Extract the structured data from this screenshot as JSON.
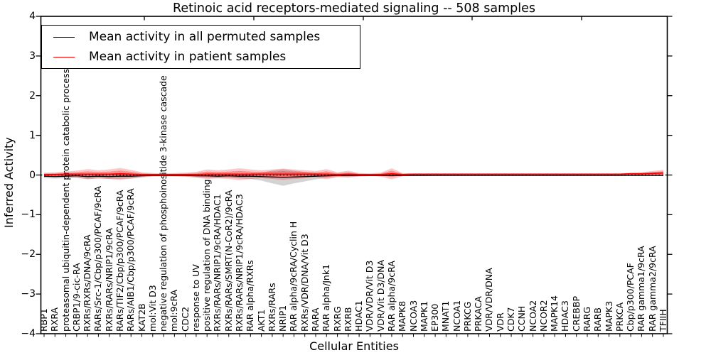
{
  "title": "Retinoic acid receptors-mediated signaling -- 508 samples",
  "axes": {
    "ylabel": "Inferred Activity",
    "xlabel": "Cellular Entities",
    "ytick_labels": [
      "4",
      "3",
      "2",
      "1",
      "0",
      "−1",
      "−2",
      "−3",
      "−4"
    ],
    "ytick_values": [
      4,
      3,
      2,
      1,
      0,
      -1,
      -2,
      -3,
      -4
    ]
  },
  "legend": {
    "items": [
      {
        "label": "Mean activity in all permuted samples",
        "color": "#000000"
      },
      {
        "label": "Mean activity in patient samples",
        "color": "#ff0000"
      }
    ]
  },
  "colors": {
    "permuted_line": "#000000",
    "patient_line": "#ff0000",
    "permuted_band": "#777777",
    "patient_band": "#ff0000",
    "axis": "#000000",
    "background": "#ffffff"
  },
  "chart_data": {
    "type": "line",
    "title": "Retinoic acid receptors-mediated signaling -- 508 samples",
    "xlabel": "Cellular Entities",
    "ylabel": "Inferred Activity",
    "ylim": [
      -4,
      4
    ],
    "grid": false,
    "legend_position": "upper left",
    "zero_line_dotted": true,
    "categories": [
      "RBP1",
      "RXRA",
      "proteasomal ubiquitin-dependent protein catabolic process",
      "CRBP1/9-cic-RA",
      "RXRs/RXRs/DNA/9cRA",
      "RARs/Src-1/Cbp/p300/PCAF/9cRA",
      "RXRs/RARs/NRIP1/9cRA",
      "RARs/TIF2/Cbp/p300/PCAF/9cRA",
      "RARs/AIB1/Cbp/p300/PCAF/9cRA",
      "KAT2B",
      "mol:Vit D3",
      "negative regulation of phosphoinositide 3-kinase cascade",
      "mol:9cRA",
      "CDC2",
      "response to UV",
      "positive regulation of DNA binding",
      "RXRs/RARs/NRIP1/9cRA/HDAC1",
      "RXRs/RARs/SMRT(N-CoR2)/9cRA",
      "RXRs/RARs/NRIP1/9cRA/HDAC3",
      "RAR alpha/RXRs",
      "AKT1",
      "RXRs/RARs",
      "NRIP1",
      "RAR alpha/9cRA/Cyclin H",
      "RXRs/VDR/DNA/Vit D3",
      "RARA",
      "RAR alpha/Jnk1",
      "RXRG",
      "RXRB",
      "HDAC1",
      "VDR/VDR/Vit D3",
      "VDR/Vit D3/DNA",
      "RAR alpha/9cRA",
      "MAPK8",
      "NCOA3",
      "MAPK1",
      "EP300",
      "MNAT1",
      "NCOA1",
      "PRKCG",
      "PRKACA",
      "VDR/VDR/DNA",
      "VDR",
      "CDK7",
      "CCNH",
      "NCOA2",
      "NCOR2",
      "MAPK14",
      "HDAC3",
      "CREBBP",
      "RARG",
      "RARB",
      "MAPK3",
      "PRKCA",
      "Cbp/p300/PCAF",
      "RAR gamma1/9cRA",
      "RAR gamma2/9cRA",
      "TFIIH"
    ],
    "series": [
      {
        "name": "Mean activity in all permuted samples",
        "color": "#000000",
        "values": [
          -0.03,
          -0.04,
          -0.03,
          -0.02,
          -0.04,
          -0.03,
          -0.04,
          -0.03,
          -0.03,
          -0.02,
          -0.01,
          -0.01,
          -0.01,
          -0.01,
          -0.02,
          -0.02,
          -0.03,
          -0.02,
          -0.03,
          -0.03,
          -0.04,
          -0.05,
          -0.06,
          -0.05,
          -0.04,
          -0.03,
          -0.02,
          -0.01,
          -0.01,
          -0.01,
          -0.01,
          -0.01,
          -0.01,
          -0.01,
          -0.01,
          -0.01,
          -0.01,
          -0.01,
          -0.01,
          -0.01,
          -0.01,
          -0.01,
          -0.01,
          -0.01,
          -0.01,
          -0.01,
          -0.01,
          -0.01,
          -0.01,
          -0.01,
          -0.01,
          -0.01,
          -0.01,
          -0.01,
          -0.01,
          -0.01,
          -0.01,
          -0.01
        ],
        "band_halfwidth": [
          0.05,
          0.05,
          0.05,
          0.05,
          0.06,
          0.06,
          0.06,
          0.07,
          0.06,
          0.04,
          0.03,
          0.03,
          0.03,
          0.03,
          0.04,
          0.05,
          0.05,
          0.05,
          0.06,
          0.07,
          0.1,
          0.16,
          0.21,
          0.16,
          0.12,
          0.08,
          0.05,
          0.04,
          0.03,
          0.03,
          0.02,
          0.02,
          0.02,
          0.02,
          0.02,
          0.02,
          0.01,
          0.01,
          0.01,
          0.01,
          0.01,
          0.01,
          0.01,
          0.01,
          0.01,
          0.01,
          0.01,
          0.01,
          0.01,
          0.01,
          0.01,
          0.01,
          0.01,
          0.01,
          0.01,
          0.01,
          0.01,
          0.01
        ]
      },
      {
        "name": "Mean activity in patient samples",
        "color": "#ff0000",
        "values": [
          0.01,
          0.01,
          0.02,
          0.02,
          0.02,
          0.02,
          0.02,
          0.03,
          0.02,
          0.01,
          0.01,
          0.01,
          0.01,
          0.01,
          0.01,
          0.02,
          0.02,
          0.02,
          0.02,
          0.02,
          0.02,
          0.02,
          0.02,
          0.02,
          0.02,
          0.02,
          0.02,
          0.01,
          0.02,
          0.01,
          0.01,
          0.01,
          0.03,
          0.01,
          0.02,
          0.02,
          0.02,
          0.02,
          0.02,
          0.02,
          0.02,
          0.02,
          0.02,
          0.02,
          0.02,
          0.02,
          0.02,
          0.02,
          0.02,
          0.02,
          0.02,
          0.02,
          0.02,
          0.02,
          0.03,
          0.03,
          0.04,
          0.05
        ],
        "band_halfwidth": [
          0.05,
          0.06,
          0.07,
          0.09,
          0.13,
          0.1,
          0.12,
          0.15,
          0.11,
          0.06,
          0.04,
          0.03,
          0.04,
          0.05,
          0.07,
          0.12,
          0.1,
          0.12,
          0.15,
          0.12,
          0.1,
          0.12,
          0.14,
          0.12,
          0.1,
          0.08,
          0.13,
          0.06,
          0.09,
          0.04,
          0.03,
          0.05,
          0.14,
          0.04,
          0.02,
          0.02,
          0.02,
          0.02,
          0.02,
          0.02,
          0.02,
          0.02,
          0.02,
          0.02,
          0.02,
          0.02,
          0.02,
          0.02,
          0.02,
          0.02,
          0.02,
          0.02,
          0.02,
          0.02,
          0.03,
          0.04,
          0.06,
          0.08
        ]
      }
    ]
  }
}
